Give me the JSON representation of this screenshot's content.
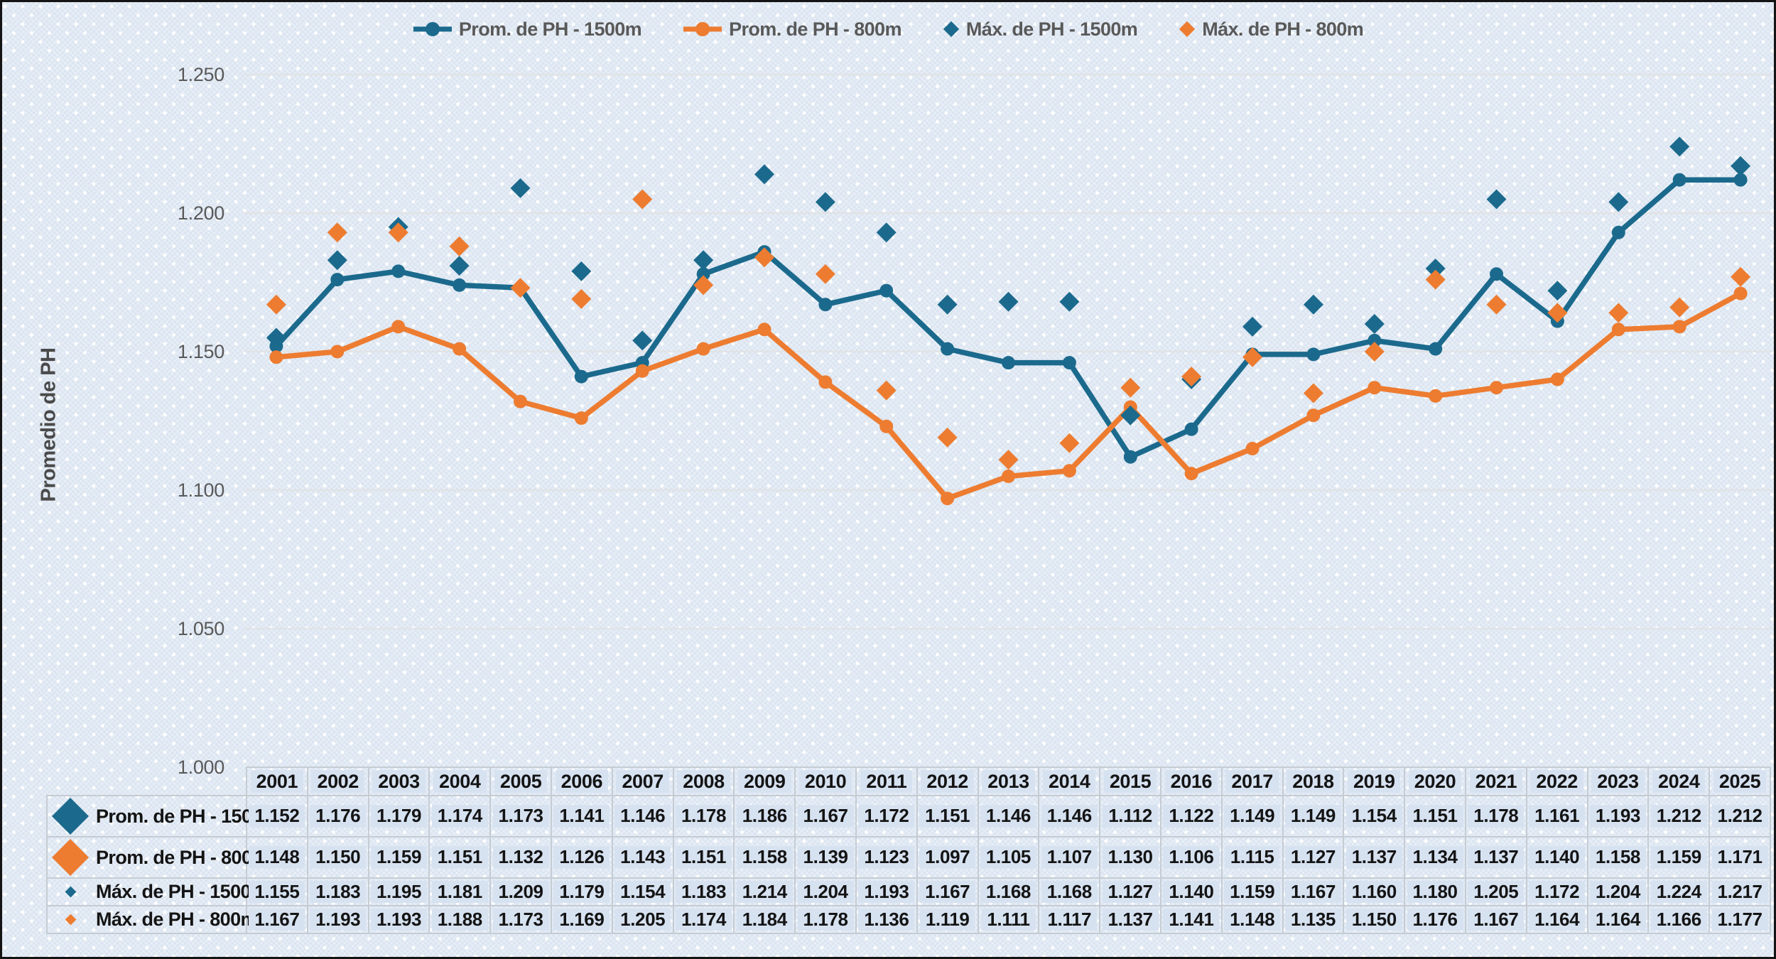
{
  "legend": {
    "items": [
      {
        "label": "Prom. de PH - 1500m",
        "marker": "line-circle",
        "color": "#1b6a8d"
      },
      {
        "label": "Prom. de PH - 800m",
        "marker": "line-circle",
        "color": "#ed7c31"
      },
      {
        "label": "Máx. de PH - 1500m",
        "marker": "diamond",
        "color": "#1b6a8d"
      },
      {
        "label": "Máx. de PH - 800m",
        "marker": "diamond",
        "color": "#ed7c31"
      }
    ]
  },
  "axis": {
    "y_title": "Promedio de PH",
    "y_ticks": [
      "1.250",
      "1.200",
      "1.150",
      "1.100",
      "1.050",
      "1.000"
    ]
  },
  "chart_data": {
    "type": "line",
    "title": "",
    "xlabel": "",
    "ylabel": "Promedio de PH",
    "ylim": [
      1.0,
      1.25
    ],
    "ytick_step": 0.05,
    "grid": "horizontal",
    "legend_position": "top",
    "x": [
      "2001",
      "2002",
      "2003",
      "2004",
      "2005",
      "2006",
      "2007",
      "2008",
      "2009",
      "2010",
      "2011",
      "2012",
      "2013",
      "2014",
      "2015",
      "2016",
      "2017",
      "2018",
      "2019",
      "2020",
      "2021",
      "2022",
      "2023",
      "2024",
      "2025"
    ],
    "series": [
      {
        "name": "Prom. de PH - 1500m",
        "type": "line",
        "marker": "circle",
        "color": "#1b6a8d",
        "values": [
          1.152,
          1.176,
          1.179,
          1.174,
          1.173,
          1.141,
          1.146,
          1.178,
          1.186,
          1.167,
          1.172,
          1.151,
          1.146,
          1.146,
          1.112,
          1.122,
          1.149,
          1.149,
          1.154,
          1.151,
          1.178,
          1.161,
          1.193,
          1.212,
          1.212
        ]
      },
      {
        "name": "Prom. de PH - 800m",
        "type": "line",
        "marker": "circle",
        "color": "#ed7c31",
        "values": [
          1.148,
          1.15,
          1.159,
          1.151,
          1.132,
          1.126,
          1.143,
          1.151,
          1.158,
          1.139,
          1.123,
          1.097,
          1.105,
          1.107,
          1.13,
          1.106,
          1.115,
          1.127,
          1.137,
          1.134,
          1.137,
          1.14,
          1.158,
          1.159,
          1.171
        ]
      },
      {
        "name": "Máx. de PH - 1500m",
        "type": "scatter",
        "marker": "diamond",
        "color": "#1b6a8d",
        "values": [
          1.155,
          1.183,
          1.195,
          1.181,
          1.209,
          1.179,
          1.154,
          1.183,
          1.214,
          1.204,
          1.193,
          1.167,
          1.168,
          1.168,
          1.127,
          1.14,
          1.159,
          1.167,
          1.16,
          1.18,
          1.205,
          1.172,
          1.204,
          1.224,
          1.217
        ]
      },
      {
        "name": "Máx. de PH - 800m",
        "type": "scatter",
        "marker": "diamond",
        "color": "#ed7c31",
        "values": [
          1.167,
          1.193,
          1.193,
          1.188,
          1.173,
          1.169,
          1.205,
          1.174,
          1.184,
          1.178,
          1.136,
          1.119,
          1.111,
          1.117,
          1.137,
          1.141,
          1.148,
          1.135,
          1.15,
          1.176,
          1.167,
          1.164,
          1.164,
          1.166,
          1.177
        ]
      }
    ]
  },
  "colors": {
    "teal": "#1b6a8d",
    "orange": "#ed7c31",
    "background": "#dbe5f1",
    "gridline": "#e2e3e5",
    "axis_text": "#595959",
    "table_text": "#141414",
    "table_border": "#c6ccd3",
    "cell_highlight": "#d7e2f1"
  }
}
